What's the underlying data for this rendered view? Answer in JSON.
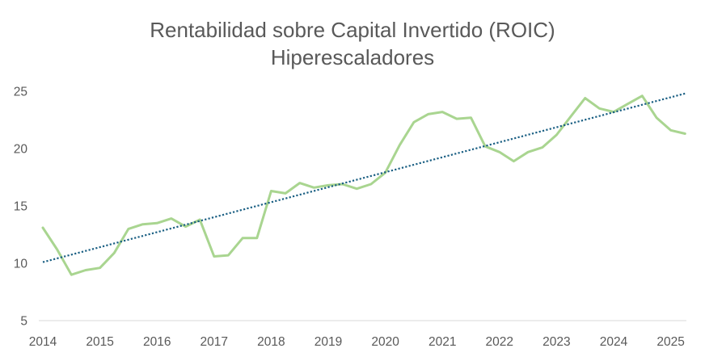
{
  "chart_data": {
    "type": "line",
    "title": "Rentabilidad sobre Capital Invertido (ROIC)",
    "subtitle": "Hiperescaladores",
    "xlim": [
      "2014-01",
      "2025-04"
    ],
    "ylim": [
      5,
      25
    ],
    "xticks": [
      "2014",
      "2015",
      "2016",
      "2017",
      "2018",
      "2019",
      "2020",
      "2021",
      "2022",
      "2023",
      "2024",
      "2025"
    ],
    "yticks": [
      5,
      10,
      15,
      20,
      25
    ],
    "grid": false,
    "series": [
      {
        "color": "#a9d590",
        "x": [
          "2014-01",
          "2014-04",
          "2014-07",
          "2014-10",
          "2015-01",
          "2015-04",
          "2015-07",
          "2015-10",
          "2016-01",
          "2016-04",
          "2016-07",
          "2016-10",
          "2017-01",
          "2017-04",
          "2017-07",
          "2017-10",
          "2018-01",
          "2018-04",
          "2018-07",
          "2018-10",
          "2019-01",
          "2019-04",
          "2019-07",
          "2019-10",
          "2020-01",
          "2020-04",
          "2020-07",
          "2020-10",
          "2021-01",
          "2021-04",
          "2021-07",
          "2021-10",
          "2022-01",
          "2022-04",
          "2022-07",
          "2022-10",
          "2023-01",
          "2023-04",
          "2023-07",
          "2023-10",
          "2024-01",
          "2024-04",
          "2024-07",
          "2024-10",
          "2025-01",
          "2025-04"
        ],
        "values": [
          13.1,
          11.2,
          9.0,
          9.4,
          9.6,
          10.9,
          13.0,
          13.4,
          13.5,
          13.9,
          13.2,
          13.8,
          10.6,
          10.7,
          12.2,
          12.2,
          16.3,
          16.1,
          17.0,
          16.6,
          16.8,
          16.9,
          16.5,
          16.9,
          17.9,
          20.3,
          22.3,
          23.0,
          23.2,
          22.6,
          22.7,
          20.2,
          19.7,
          18.9,
          19.7,
          20.1,
          21.2,
          22.8,
          24.4,
          23.5,
          23.2,
          23.9,
          24.6,
          22.7,
          21.6,
          21.3
        ]
      }
    ],
    "trendline": {
      "color": "#1a5f83",
      "x": [
        "2014-01",
        "2025-04"
      ],
      "values": [
        10.1,
        24.8
      ]
    }
  }
}
